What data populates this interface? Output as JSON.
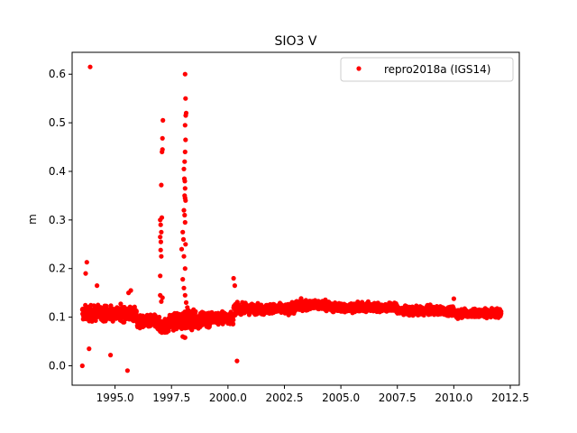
{
  "chart_data": {
    "type": "scatter",
    "title": "SIO3 V",
    "xlabel": "",
    "ylabel": "m",
    "xlim": [
      1993.1,
      2012.9
    ],
    "ylim": [
      -0.04,
      0.645
    ],
    "xticks": [
      1995.0,
      1997.5,
      2000.0,
      2002.5,
      2005.0,
      2007.5,
      2010.0,
      2012.5
    ],
    "xtick_labels": [
      "1995.0",
      "1997.5",
      "2000.0",
      "2002.5",
      "2005.0",
      "2007.5",
      "2010.0",
      "2012.5"
    ],
    "yticks": [
      0.0,
      0.1,
      0.2,
      0.3,
      0.4,
      0.5,
      0.6
    ],
    "ytick_labels": [
      "0.0",
      "0.1",
      "0.2",
      "0.3",
      "0.4",
      "0.5",
      "0.6"
    ],
    "grid": false,
    "legend_position": "top-right",
    "series": [
      {
        "name": "repro2018a (IGS14)",
        "color": "#ff0000",
        "marker": "circle",
        "segments": [
          {
            "x": [
              1993.55,
              1995.95
            ],
            "y_center": 0.108,
            "spread": 0.012
          },
          {
            "x": [
              1995.95,
              1996.9
            ],
            "y_center": 0.09,
            "spread": 0.01
          },
          {
            "x": [
              1996.9,
              1997.4
            ],
            "y_center": 0.082,
            "spread": 0.012
          },
          {
            "x": [
              1997.4,
              1998.0
            ],
            "y_center": 0.09,
            "spread": 0.012
          },
          {
            "x": [
              1998.0,
              1999.2
            ],
            "y_center": 0.095,
            "spread": 0.015
          },
          {
            "x": [
              1999.2,
              2000.25
            ],
            "y_center": 0.098,
            "spread": 0.01
          },
          {
            "x": [
              2000.25,
              2003.0
            ],
            "y_center": 0.117,
            "spread": 0.008
          },
          {
            "x": [
              2003.0,
              2004.5
            ],
            "y_center": 0.125,
            "spread": 0.008
          },
          {
            "x": [
              2004.5,
              2007.5
            ],
            "y_center": 0.12,
            "spread": 0.007
          },
          {
            "x": [
              2007.5,
              2010.0
            ],
            "y_center": 0.113,
            "spread": 0.007
          },
          {
            "x": [
              2010.0,
              2012.1
            ],
            "y_center": 0.108,
            "spread": 0.007
          }
        ],
        "outliers": [
          [
            1993.55,
            0.0
          ],
          [
            1993.75,
            0.213
          ],
          [
            1993.7,
            0.19
          ],
          [
            1993.85,
            0.035
          ],
          [
            1993.9,
            0.615
          ],
          [
            1994.2,
            0.165
          ],
          [
            1994.8,
            0.022
          ],
          [
            1995.55,
            -0.01
          ],
          [
            1995.6,
            0.15
          ],
          [
            1995.7,
            0.155
          ],
          [
            1997.0,
            0.145
          ],
          [
            1997.05,
            0.372
          ],
          [
            1997.08,
            0.44
          ],
          [
            1997.1,
            0.445
          ],
          [
            1997.12,
            0.505
          ],
          [
            1997.1,
            0.468
          ],
          [
            1997.0,
            0.3
          ],
          [
            1997.02,
            0.29
          ],
          [
            1997.05,
            0.275
          ],
          [
            1997.0,
            0.265
          ],
          [
            1997.02,
            0.238
          ],
          [
            1997.05,
            0.225
          ],
          [
            1997.0,
            0.185
          ],
          [
            1997.1,
            0.14
          ],
          [
            1997.05,
            0.132
          ],
          [
            1997.03,
            0.255
          ],
          [
            1997.07,
            0.305
          ],
          [
            1998.1,
            0.6
          ],
          [
            1998.12,
            0.55
          ],
          [
            1998.15,
            0.52
          ],
          [
            1998.13,
            0.515
          ],
          [
            1998.1,
            0.495
          ],
          [
            1998.12,
            0.465
          ],
          [
            1998.1,
            0.44
          ],
          [
            1998.08,
            0.42
          ],
          [
            1998.05,
            0.405
          ],
          [
            1998.07,
            0.385
          ],
          [
            1998.09,
            0.38
          ],
          [
            1998.1,
            0.365
          ],
          [
            1998.08,
            0.35
          ],
          [
            1998.1,
            0.345
          ],
          [
            1998.12,
            0.34
          ],
          [
            1998.05,
            0.32
          ],
          [
            1998.08,
            0.31
          ],
          [
            1998.1,
            0.295
          ],
          [
            1998.0,
            0.275
          ],
          [
            1998.03,
            0.26
          ],
          [
            1998.12,
            0.25
          ],
          [
            1997.95,
            0.24
          ],
          [
            1998.05,
            0.225
          ],
          [
            1998.1,
            0.2
          ],
          [
            1998.0,
            0.178
          ],
          [
            1998.05,
            0.16
          ],
          [
            1998.1,
            0.145
          ],
          [
            1998.15,
            0.13
          ],
          [
            1998.2,
            0.12
          ],
          [
            1998.08,
            0.058
          ],
          [
            1998.0,
            0.06
          ],
          [
            1998.1,
            0.058
          ],
          [
            2000.25,
            0.18
          ],
          [
            2000.3,
            0.165
          ],
          [
            2000.4,
            0.01
          ],
          [
            2010.0,
            0.138
          ]
        ]
      }
    ]
  }
}
